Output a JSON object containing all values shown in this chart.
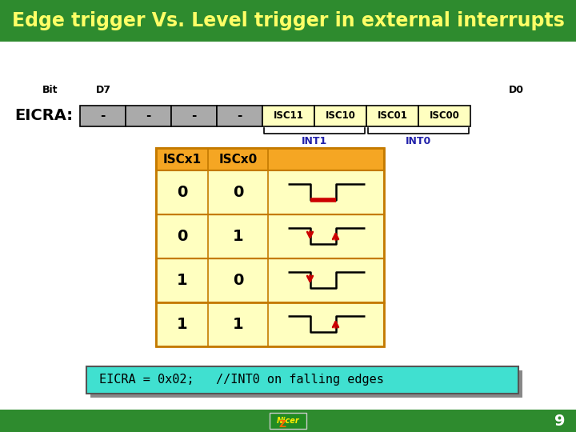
{
  "title": "Edge trigger Vs. Level trigger in external interrupts",
  "title_color": "#FFFF66",
  "title_bg": "#2E8B2E",
  "bg_color": "#FFFFFF",
  "slide_bg": "#CCCCCC",
  "bottom_bar_color": "#2E8B2E",
  "header_orange": "#F5A623",
  "cell_yellow": "#FFFFC0",
  "register_label": "EICRA:",
  "bit_label": "Bit",
  "d7_label": "D7",
  "d0_label": "D0",
  "int1_label": "INT1",
  "int0_label": "INT0",
  "dash_cells": [
    "-",
    "-",
    "-",
    "-"
  ],
  "isc_cells": [
    "ISC11",
    "ISC10",
    "ISC01",
    "ISC00"
  ],
  "table_header": [
    "ISCx1",
    "ISCx0"
  ],
  "table_rows": [
    {
      "isc1": "0",
      "isc0": "0",
      "mode": "level_low"
    },
    {
      "isc1": "0",
      "isc0": "1",
      "mode": "any_edge"
    },
    {
      "isc1": "1",
      "isc0": "0",
      "mode": "falling"
    },
    {
      "isc1": "1",
      "isc0": "1",
      "mode": "rising"
    }
  ],
  "code_text": "EICRA = 0x02;   //INT0 on falling edges",
  "code_bg": "#40E0D0",
  "code_border": "#888888",
  "page_num": "9",
  "title_fontsize": 17,
  "reg_fontsize": 10,
  "eicra_fontsize": 14,
  "table_fontsize": 12,
  "code_fontsize": 11
}
